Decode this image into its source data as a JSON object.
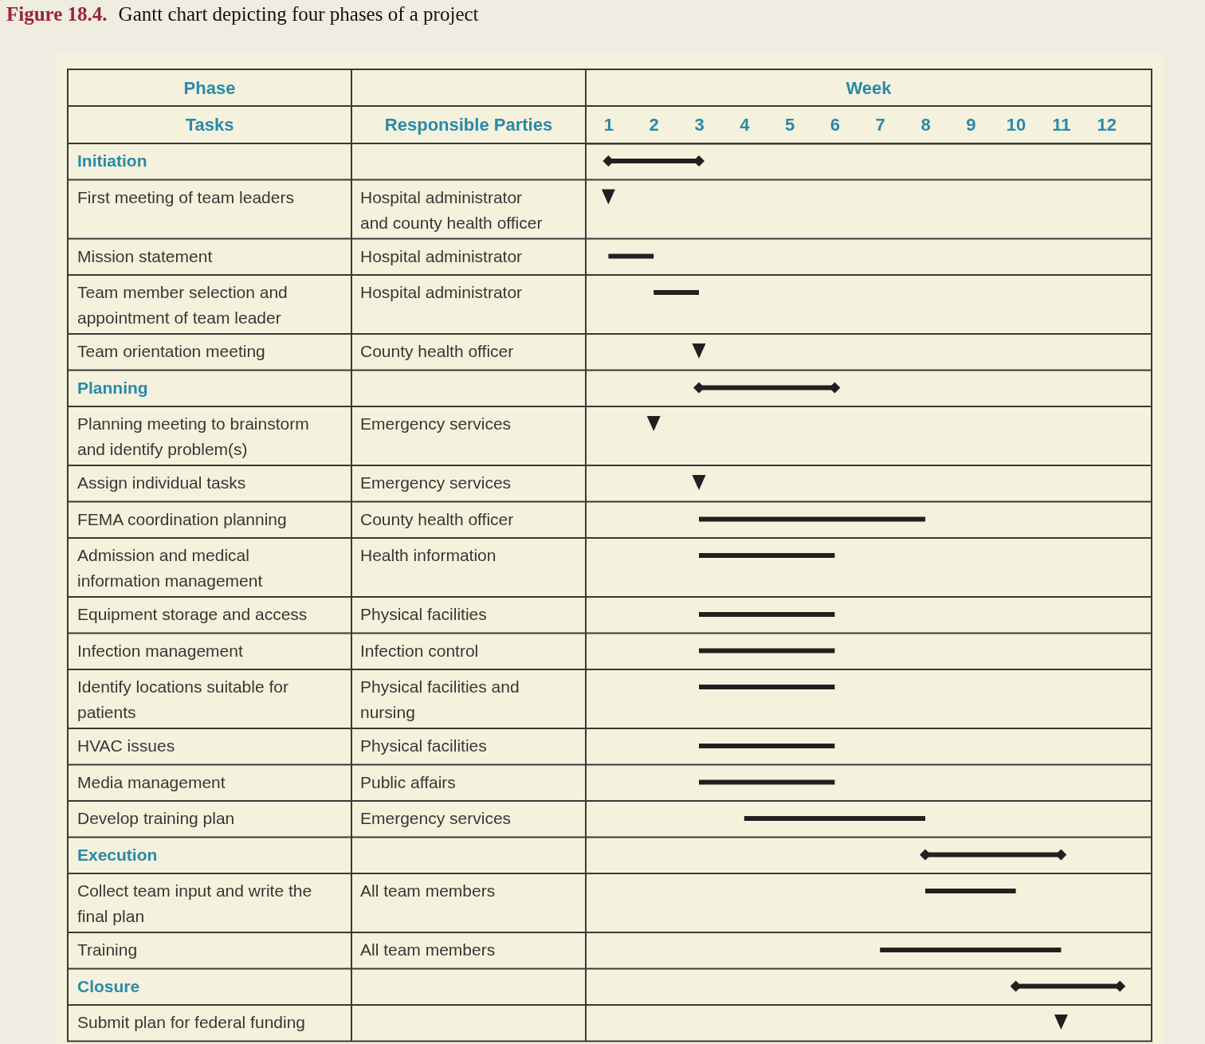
{
  "chart_data": {
    "type": "bar",
    "orientation": "horizontal",
    "title": "Figure 18.4.",
    "subtitle": "Gantt chart depicting four phases of a project",
    "x2label": "Week",
    "ylabel": "Tasks",
    "y2label": "Responsible Parties",
    "annotations": [
      "Phase"
    ],
    "categories": [
      "Initiation",
      "First meeting of team leaders",
      "Mission statement",
      "Team member selection and appointment of team leader",
      "Team orientation meeting",
      "Planning",
      "Planning meeting to brainstorm and identify problem(s)",
      "Assign individual tasks",
      "FEMA coordination planning",
      "Admission and medical information management",
      "Equipment storage and access",
      "Infection management",
      "Identify locations suitable for patients",
      "HVAC issues",
      "Media management",
      "Develop training plan",
      "Execution",
      "Collect team input and write the final plan",
      "Training",
      "Closure",
      "Submit plan for federal funding"
    ],
    "y2_categories": [
      null,
      "Hospital administrator and county health officer",
      "Hospital administrator",
      "Hospital administrator",
      "County health officer",
      null,
      "Emergency services",
      "Emergency services",
      "County health officer",
      "Health information",
      "Physical facilities",
      "Infection control",
      "Physical facilities and nursing",
      "Physical facilities",
      "Public affairs",
      "Emergency services",
      null,
      "All team members",
      "All team members",
      null,
      null
    ],
    "x2lim": [
      0.5,
      13
    ],
    "x2ticks": [
      1,
      2,
      3,
      4,
      5,
      6,
      7,
      8,
      9,
      10,
      11,
      12
    ],
    "series": [
      {
        "axis": "x2",
        "color": "#231f20",
        "base": [
          1,
          null,
          1,
          2,
          null,
          3,
          null,
          null,
          3,
          3,
          3,
          3,
          3,
          3,
          3,
          4,
          8,
          8,
          7,
          10,
          null
        ],
        "values": [
          2,
          null,
          1,
          1,
          null,
          3,
          null,
          null,
          5,
          3,
          3,
          3,
          3,
          3,
          3,
          4,
          3,
          2,
          4,
          2.3,
          null
        ]
      },
      {
        "axis": "x2",
        "type": "scatter",
        "marker": "diamond",
        "color": "#231f20",
        "values": [
          1,
          null,
          null,
          null,
          null,
          3,
          null,
          null,
          null,
          null,
          null,
          null,
          null,
          null,
          null,
          null,
          8,
          null,
          null,
          10,
          null
        ]
      },
      {
        "axis": "x2",
        "type": "scatter",
        "marker": "diamond",
        "color": "#231f20",
        "values": [
          3,
          null,
          null,
          null,
          null,
          6,
          null,
          null,
          null,
          null,
          null,
          null,
          null,
          null,
          null,
          null,
          11,
          null,
          null,
          12.3,
          null
        ]
      },
      {
        "axis": "x2",
        "type": "scatter",
        "marker": "triangle",
        "color": "#231f20",
        "values": [
          null,
          1,
          null,
          null,
          3,
          null,
          2,
          3,
          null,
          null,
          null,
          null,
          null,
          null,
          null,
          null,
          null,
          null,
          null,
          null,
          11
        ]
      }
    ]
  }
}
